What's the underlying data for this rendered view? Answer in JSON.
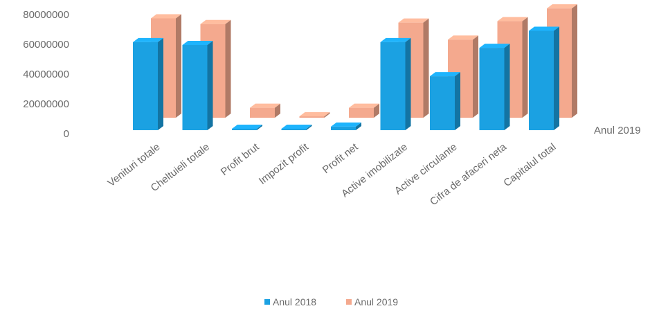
{
  "chart_data": {
    "type": "bar",
    "style": "3d-clustered-column",
    "categories": [
      "Venituri totale",
      "Cheltuieli totale",
      "Profit brut",
      "Impozit profit",
      "Profit net",
      "Active imobilizate",
      "Active circulante",
      "Cifra de afaceri neta",
      "Capitalul total"
    ],
    "series": [
      {
        "name": "Anul 2018",
        "color": "#1BA1E2",
        "values": [
          62000000,
          60000000,
          1000000,
          1000000,
          2500000,
          62000000,
          38000000,
          58000000,
          70000000
        ]
      },
      {
        "name": "Anul 2019",
        "color": "#F4A98E",
        "values": [
          70000000,
          66000000,
          7000000,
          1000000,
          7000000,
          67000000,
          55000000,
          68000000,
          77000000
        ]
      }
    ],
    "y_ticks": [
      "0",
      "20000000",
      "40000000",
      "60000000",
      "80000000"
    ],
    "ylim": [
      0,
      80000000
    ],
    "depth_axis_label": "Anul 2019",
    "grid": false,
    "legend": "bottom"
  }
}
